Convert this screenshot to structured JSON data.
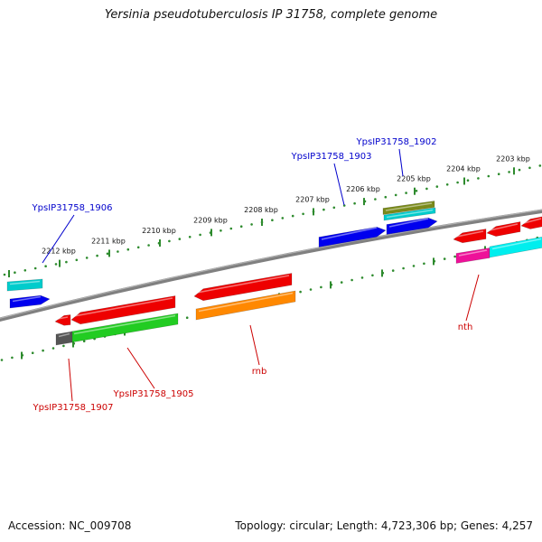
{
  "title": "Yersinia pseudotuberculosis IP 31758, complete genome",
  "accession_text": "Accession: NC_009708",
  "info_text": "Topology: circular; Length: 4,723,306 bp; Genes: 4,257",
  "colors": {
    "backbone": "#808080",
    "tick": "#2e8b2e",
    "label_blue": "#0000cc",
    "label_red": "#cc0000"
  },
  "ticks": [
    {
      "label": "2203 kbp"
    },
    {
      "label": "2204 kbp"
    },
    {
      "label": "2205 kbp"
    },
    {
      "label": "2206 kbp"
    },
    {
      "label": "2207 kbp"
    },
    {
      "label": "2208 kbp"
    },
    {
      "label": "2209 kbp"
    },
    {
      "label": "2210 kbp"
    },
    {
      "label": "2211 kbp"
    },
    {
      "label": "2212 kbp"
    }
  ],
  "gene_labels": [
    {
      "text": "YpsIP31758_1902",
      "color": "blue"
    },
    {
      "text": "YpsIP31758_1903",
      "color": "blue"
    },
    {
      "text": "YpsIP31758_1906",
      "color": "blue"
    },
    {
      "text": "YpsIP31758_1905",
      "color": "red"
    },
    {
      "text": "YpsIP31758_1907",
      "color": "red"
    },
    {
      "text": "rnb",
      "color": "red"
    },
    {
      "text": "nth",
      "color": "red"
    }
  ],
  "features": [
    {
      "strand": "+",
      "color": "#0000ee"
    },
    {
      "strand": "+",
      "color": "#0000ee"
    },
    {
      "strand": "+",
      "color": "#0000ee"
    },
    {
      "strand": "+",
      "color": "#7a8a1a"
    },
    {
      "strand": "+",
      "color": "#00cccc"
    },
    {
      "strand": "+",
      "color": "#00cccc"
    },
    {
      "strand": "-",
      "color": "#ee0000"
    },
    {
      "strand": "-",
      "color": "#ee0000"
    },
    {
      "strand": "-",
      "color": "#ee0000"
    },
    {
      "strand": "-",
      "color": "#ee0000"
    },
    {
      "strand": "-",
      "color": "#ee0000"
    },
    {
      "strand": "-",
      "color": "#ee0000"
    },
    {
      "strand": "-",
      "color": "#22cc22"
    },
    {
      "strand": "-",
      "color": "#555555"
    },
    {
      "strand": "-",
      "color": "#ff8800"
    },
    {
      "strand": "-",
      "color": "#ee1199"
    },
    {
      "strand": "-",
      "color": "#00eeee"
    }
  ]
}
